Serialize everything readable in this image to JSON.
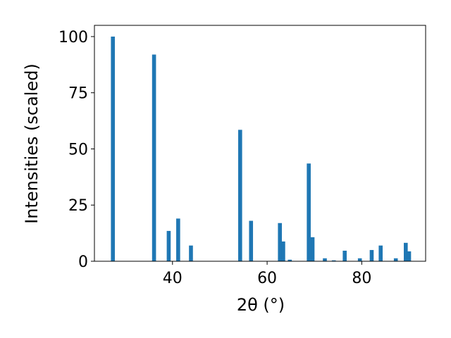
{
  "chart_data": {
    "type": "bar",
    "title": "",
    "xlabel": "2θ (°)",
    "ylabel": "Intensities (scaled)",
    "xlim": [
      23.5,
      93.5
    ],
    "ylim": [
      0,
      105
    ],
    "xticks": [
      40,
      60,
      80
    ],
    "yticks": [
      0,
      25,
      50,
      75,
      100
    ],
    "grid": false,
    "bar_color": "#1f77b4",
    "x": [
      27.4,
      36.1,
      39.2,
      41.2,
      43.9,
      54.3,
      56.6,
      62.7,
      63.4,
      64.8,
      68.8,
      69.6,
      72.2,
      74.1,
      76.4,
      79.6,
      82.1,
      84.0,
      87.2,
      89.3,
      90.0
    ],
    "values": [
      100,
      92,
      13.5,
      19,
      7,
      58.5,
      18,
      17,
      8.8,
      0.7,
      43.5,
      10.7,
      1.3,
      0.4,
      4.7,
      1.3,
      5,
      7,
      1.3,
      8.2,
      4.4
    ]
  }
}
